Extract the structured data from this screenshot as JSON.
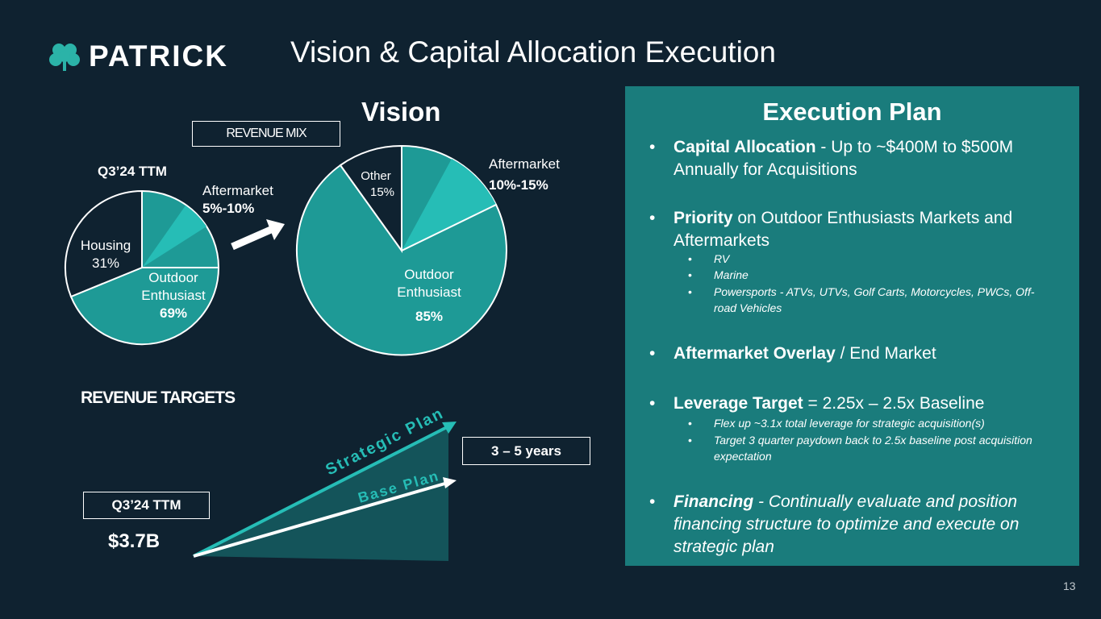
{
  "header": {
    "logo_text": "PATRICK",
    "title": "Vision & Capital Allocation Execution"
  },
  "vision": {
    "heading": "Vision",
    "revenue_mix_label": "REVENUE MIX",
    "current_period": "Q3’24 TTM",
    "current_pie": {
      "aftermarket_label": "Aftermarket",
      "aftermarket_value": "5%-10%",
      "housing_label": "Housing",
      "housing_value": "31%",
      "outdoor_label_1": "Outdoor",
      "outdoor_label_2": "Enthusiast",
      "outdoor_value": "69%"
    },
    "target_pie": {
      "aftermarket_label": "Aftermarket",
      "aftermarket_value": "10%-15%",
      "other_label": "Other",
      "other_value": "15%",
      "outdoor_label_1": "Outdoor",
      "outdoor_label_2": "Enthusiast",
      "outdoor_value": "85%"
    }
  },
  "targets": {
    "heading": "REVENUE TARGETS",
    "period_label": "Q3’24 TTM",
    "base_value": "$3.7B",
    "horizon": "3 – 5 years",
    "strategic_label": "Strategic Plan",
    "base_label": "Base Plan"
  },
  "execution": {
    "title": "Execution Plan",
    "bullets": [
      {
        "bold": "Capital Allocation",
        "rest": " -  Up to ~$400M to $500M Annually for Acquisitions"
      },
      {
        "bold": "Priority",
        "rest": " on Outdoor Enthusiasts Markets and Aftermarkets"
      },
      {
        "bold": "Aftermarket Overlay",
        "rest": " / End Market"
      },
      {
        "bold": "Leverage Target",
        "rest": " = 2.25x – 2.5x Baseline"
      },
      {
        "bold": "Financing",
        "rest": " - Continually evaluate and position financing structure to optimize and execute on strategic plan"
      }
    ],
    "priority_subs": [
      "RV",
      "Marine",
      "Powersports - ATVs, UTVs, Golf Carts, Motorcycles, PWCs, Off-road Vehicles"
    ],
    "leverage_subs": [
      "Flex up ~3.1x total leverage for strategic acquisition(s)",
      "Target 3 quarter paydown back to 2.5x baseline post acquisition expectation"
    ]
  },
  "footer": {
    "page_number": "13"
  },
  "colors": {
    "background": "#0f2230",
    "teal": "#1e9a96",
    "light_teal": "#26bdb6",
    "dark_slice": "#0f2230",
    "panel": "#1a7c7c",
    "triangle": "#14545a"
  }
}
